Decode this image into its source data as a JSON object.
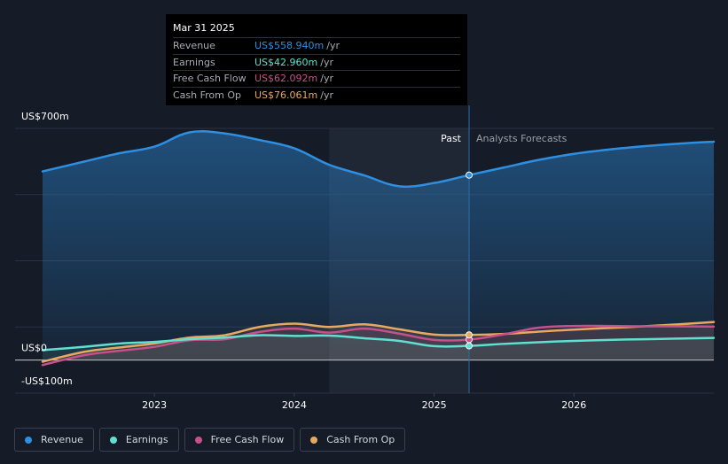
{
  "tooltip": {
    "date": "Mar 31 2025",
    "rows": [
      {
        "label": "Revenue",
        "value": "US$558.940m",
        "unit": "/yr",
        "color": "#2e8fe0"
      },
      {
        "label": "Earnings",
        "value": "US$42.960m",
        "unit": "/yr",
        "color": "#5fe0d0"
      },
      {
        "label": "Free Cash Flow",
        "value": "US$62.092m",
        "unit": "/yr",
        "color": "#c8508a"
      },
      {
        "label": "Cash From Op",
        "value": "US$76.061m",
        "unit": "/yr",
        "color": "#e8a860"
      }
    ]
  },
  "legend": [
    {
      "label": "Revenue",
      "color": "#2e8fe0"
    },
    {
      "label": "Earnings",
      "color": "#5fe0d0"
    },
    {
      "label": "Free Cash Flow",
      "color": "#c8508a"
    },
    {
      "label": "Cash From Op",
      "color": "#e8a860"
    }
  ],
  "chart_data": {
    "type": "line",
    "title": "",
    "xlabel": "",
    "ylabel": "",
    "unit": "US$m per year",
    "xlim": [
      2022.2,
      2027.0
    ],
    "ylim": [
      -100,
      700
    ],
    "y_ticks": [
      {
        "value": 700,
        "label": "US$700m"
      },
      {
        "value": 0,
        "label": "US$0"
      },
      {
        "value": -100,
        "label": "-US$100m"
      }
    ],
    "x_ticks": [
      {
        "value": 2023.0,
        "label": "2023"
      },
      {
        "value": 2024.0,
        "label": "2024"
      },
      {
        "value": 2025.0,
        "label": "2025"
      },
      {
        "value": 2026.0,
        "label": "2026"
      }
    ],
    "past_start": 2024.25,
    "divider": 2025.25,
    "past_label": "Past",
    "forecast_label": "Analysts Forecasts",
    "series": [
      {
        "name": "Revenue",
        "color": "#2e8fe0",
        "x": [
          2022.2,
          2022.5,
          2022.75,
          2023.0,
          2023.25,
          2023.5,
          2023.75,
          2024.0,
          2024.25,
          2024.5,
          2024.75,
          2025.0,
          2025.25,
          2025.5,
          2025.75,
          2026.0,
          2026.25,
          2026.5,
          2026.75,
          2027.0
        ],
        "y": [
          570,
          600,
          625,
          645,
          688,
          685,
          665,
          640,
          590,
          558,
          525,
          535,
          559,
          582,
          605,
          623,
          636,
          646,
          654,
          660
        ]
      },
      {
        "name": "Earnings",
        "color": "#5fe0d0",
        "x": [
          2022.2,
          2022.5,
          2022.75,
          2023.0,
          2023.25,
          2023.5,
          2023.75,
          2024.0,
          2024.25,
          2024.5,
          2024.75,
          2025.0,
          2025.25,
          2025.5,
          2025.75,
          2026.0,
          2026.25,
          2026.5,
          2026.75,
          2027.0
        ],
        "y": [
          30,
          40,
          50,
          55,
          63,
          68,
          75,
          73,
          74,
          66,
          58,
          42,
          43,
          49,
          54,
          58,
          61,
          63,
          65,
          67
        ]
      },
      {
        "name": "Free Cash Flow",
        "color": "#c8508a",
        "x": [
          2022.2,
          2022.5,
          2022.75,
          2023.0,
          2023.25,
          2023.5,
          2023.75,
          2024.0,
          2024.25,
          2024.5,
          2024.75,
          2025.0,
          2025.25,
          2025.5,
          2025.75,
          2026.0,
          2026.25,
          2026.5,
          2026.75,
          2027.0
        ],
        "y": [
          -15,
          15,
          28,
          40,
          60,
          63,
          85,
          95,
          83,
          95,
          80,
          61,
          62,
          78,
          98,
          103,
          103,
          102,
          102,
          101
        ]
      },
      {
        "name": "Cash From Op",
        "color": "#e8a860",
        "x": [
          2022.2,
          2022.5,
          2022.75,
          2023.0,
          2023.25,
          2023.5,
          2023.75,
          2024.0,
          2024.25,
          2024.5,
          2024.75,
          2025.0,
          2025.25,
          2025.5,
          2025.75,
          2026.0,
          2026.25,
          2026.5,
          2026.75,
          2027.0
        ],
        "y": [
          -5,
          25,
          38,
          50,
          68,
          75,
          100,
          110,
          100,
          108,
          93,
          77,
          76,
          79,
          86,
          92,
          97,
          102,
          108,
          115
        ]
      }
    ]
  }
}
